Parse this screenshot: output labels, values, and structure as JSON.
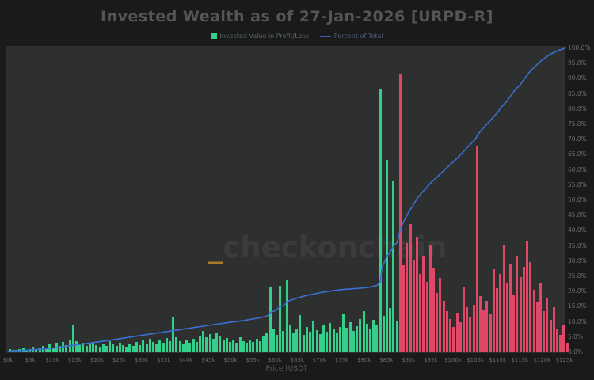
{
  "title": "Invested Wealth as of 27-Jan-2026 [URPD-R]",
  "legend": {
    "profit_label": "Invested Value in Profit/Loss",
    "percent_label": "Percent of Total"
  },
  "watermark": {
    "underscore": "_",
    "text": "checkonchain"
  },
  "axes": {
    "x_title": "Price [USD]",
    "x_ticks": [
      {
        "v": 0,
        "label": "$0k"
      },
      {
        "v": 5,
        "label": "$5k"
      },
      {
        "v": 10,
        "label": "$10k"
      },
      {
        "v": 15,
        "label": "$15k"
      },
      {
        "v": 20,
        "label": "$20k"
      },
      {
        "v": 25,
        "label": "$25k"
      },
      {
        "v": 30,
        "label": "$30k"
      },
      {
        "v": 35,
        "label": "$35k"
      },
      {
        "v": 40,
        "label": "$40k"
      },
      {
        "v": 45,
        "label": "$45k"
      },
      {
        "v": 50,
        "label": "$50k"
      },
      {
        "v": 55,
        "label": "$55k"
      },
      {
        "v": 60,
        "label": "$60k"
      },
      {
        "v": 65,
        "label": "$65k"
      },
      {
        "v": 70,
        "label": "$70k"
      },
      {
        "v": 75,
        "label": "$75k"
      },
      {
        "v": 80,
        "label": "$80k"
      },
      {
        "v": 85,
        "label": "$85k"
      },
      {
        "v": 90,
        "label": "$90k"
      },
      {
        "v": 95,
        "label": "$95k"
      },
      {
        "v": 100,
        "label": "$100k"
      },
      {
        "v": 105,
        "label": "$105k"
      },
      {
        "v": 110,
        "label": "$110k"
      },
      {
        "v": 115,
        "label": "$115k"
      },
      {
        "v": 120,
        "label": "$120k"
      },
      {
        "v": 125,
        "label": "$125k"
      }
    ],
    "y_right_ticks": [
      {
        "v": 100,
        "label": "100.0%"
      },
      {
        "v": 95,
        "label": "95.0%"
      },
      {
        "v": 90,
        "label": "90.0%"
      },
      {
        "v": 85,
        "label": "85.0%"
      },
      {
        "v": 80,
        "label": "80.0%"
      },
      {
        "v": 75,
        "label": "75.0%"
      },
      {
        "v": 70,
        "label": "70.0%"
      },
      {
        "v": 65,
        "label": "65.0%"
      },
      {
        "v": 60,
        "label": "60.0%"
      },
      {
        "v": 55,
        "label": "55.0%"
      },
      {
        "v": 50,
        "label": "50.0%"
      },
      {
        "v": 45,
        "label": "45.0%"
      },
      {
        "v": 40,
        "label": "40.0%"
      },
      {
        "v": 35,
        "label": "35.0%"
      },
      {
        "v": 30,
        "label": "30.0%"
      },
      {
        "v": 25,
        "label": "25.0%"
      },
      {
        "v": 20,
        "label": "20.0%"
      },
      {
        "v": 15,
        "label": "15.0%"
      },
      {
        "v": 10,
        "label": "10.0%"
      },
      {
        "v": 5,
        "label": "5.0%"
      },
      {
        "v": 0,
        "label": "0.0%"
      }
    ]
  },
  "colors": {
    "profit_green": "#35cf8c",
    "loss_red": "#e04868",
    "percent_blue": "#3c6fd4",
    "plot_bg": "#2e2f2f",
    "outer_bg": "#1a1a1a",
    "watermark_orange": "#a87c2c"
  },
  "chart_data": {
    "type": "bar+line",
    "title": "Invested Wealth as of 27-Jan-2026 [URPD-R]",
    "xlabel": "Price [USD]",
    "xlim_k": [
      0,
      126.5
    ],
    "ylim_pct": [
      0,
      100
    ],
    "grid": false,
    "legend_position": "top-center",
    "boundary_price_k": 87.6,
    "bars": {
      "name": "Invested Value in Profit/Loss",
      "start_k": 0.4,
      "step_k": 0.75,
      "heights_pct": [
        0.8,
        0.4,
        0.5,
        0.7,
        1.2,
        0.6,
        0.9,
        1.5,
        0.8,
        1.1,
        1.8,
        1.0,
        2.3,
        1.4,
        2.8,
        1.7,
        3.2,
        2.1,
        3.8,
        8.8,
        3.4,
        2.2,
        2.9,
        1.8,
        2.4,
        3.1,
        2.0,
        1.6,
        2.6,
        1.9,
        3.3,
        2.3,
        1.7,
        2.8,
        2.1,
        1.5,
        2.5,
        1.8,
        3.0,
        2.2,
        3.6,
        2.6,
        4.2,
        3.1,
        2.4,
        3.7,
        2.8,
        4.5,
        3.3,
        11.4,
        4.8,
        3.5,
        2.7,
        3.9,
        2.9,
        4.3,
        3.2,
        5.2,
        6.7,
        4.6,
        5.8,
        4.1,
        6.2,
        4.9,
        3.6,
        4.4,
        3.0,
        3.8,
        2.9,
        4.7,
        3.4,
        2.8,
        3.9,
        3.1,
        4.2,
        3.5,
        5.1,
        6.3,
        21.0,
        7.2,
        5.4,
        21.5,
        6.8,
        23.5,
        8.9,
        6.1,
        7.4,
        12.0,
        5.6,
        8.2,
        6.4,
        10.2,
        7.1,
        5.8,
        8.6,
        6.6,
        9.4,
        7.6,
        5.9,
        8.1,
        12.2,
        7.8,
        9.6,
        6.9,
        8.4,
        10.8,
        13.2,
        9.1,
        7.3,
        10.4,
        8.8,
        86.5,
        11.6,
        63.0,
        14.2,
        56.0,
        9.8,
        91.5,
        28.4,
        35.6,
        42.0,
        30.2,
        37.8,
        25.4,
        31.6,
        22.8,
        35.2,
        27.6,
        19.4,
        24.2,
        16.8,
        13.4,
        10.6,
        8.2,
        12.8,
        9.6,
        21.2,
        14.6,
        11.2,
        15.4,
        67.5,
        18.2,
        13.8,
        16.6,
        12.4,
        27.2,
        20.8,
        25.6,
        35.2,
        22.4,
        28.8,
        18.6,
        31.4,
        24.6,
        27.8,
        36.2,
        29.4,
        20.2,
        16.4,
        22.6,
        13.2,
        17.8,
        10.4,
        14.6,
        7.2,
        5.4,
        8.6,
        2.8
      ]
    },
    "line": {
      "name": "Percent of Total",
      "points": [
        [
          0,
          0
        ],
        [
          5,
          0.5
        ],
        [
          10,
          1.1
        ],
        [
          15,
          2.1
        ],
        [
          20,
          3.1
        ],
        [
          25,
          4.2
        ],
        [
          30,
          5.3
        ],
        [
          35,
          6.4
        ],
        [
          40,
          7.5
        ],
        [
          45,
          8.6
        ],
        [
          50,
          9.6
        ],
        [
          53,
          10.2
        ],
        [
          55,
          10.7
        ],
        [
          57,
          11.2
        ],
        [
          58.5,
          11.8
        ],
        [
          59,
          12.9
        ],
        [
          60,
          13.4
        ],
        [
          61,
          14.6
        ],
        [
          62,
          15.2
        ],
        [
          63,
          16.6
        ],
        [
          64,
          17.1
        ],
        [
          65,
          17.6
        ],
        [
          67,
          18.4
        ],
        [
          69,
          19.0
        ],
        [
          71,
          19.6
        ],
        [
          73,
          20.0
        ],
        [
          75,
          20.4
        ],
        [
          77,
          20.6
        ],
        [
          79,
          20.8
        ],
        [
          81,
          21.1
        ],
        [
          83,
          21.8
        ],
        [
          83.7,
          23.0
        ],
        [
          84,
          27.5
        ],
        [
          84.4,
          28.8
        ],
        [
          85.2,
          31.5
        ],
        [
          85.6,
          32.2
        ],
        [
          86.7,
          34.8
        ],
        [
          87.4,
          35.8
        ],
        [
          88.2,
          40.5
        ],
        [
          89,
          43
        ],
        [
          90,
          45.8
        ],
        [
          91,
          48
        ],
        [
          92,
          50.5
        ],
        [
          93,
          52.3
        ],
        [
          94,
          53.8
        ],
        [
          95,
          55.5
        ],
        [
          96,
          56.8
        ],
        [
          97,
          58.2
        ],
        [
          98,
          59.6
        ],
        [
          99,
          61
        ],
        [
          100,
          62.3
        ],
        [
          101,
          63.7
        ],
        [
          102,
          65.2
        ],
        [
          103,
          66.8
        ],
        [
          104,
          68.3
        ],
        [
          105,
          69.8
        ],
        [
          105.5,
          71.2
        ],
        [
          106,
          72.2
        ],
        [
          107,
          73.8
        ],
        [
          108,
          75.4
        ],
        [
          109,
          77
        ],
        [
          110,
          78.6
        ],
        [
          111,
          80.6
        ],
        [
          112,
          82.2
        ],
        [
          113,
          84.2
        ],
        [
          114,
          86.2
        ],
        [
          115,
          87.6
        ],
        [
          116,
          89.6
        ],
        [
          117,
          91.6
        ],
        [
          118,
          93.2
        ],
        [
          119,
          94.6
        ],
        [
          120,
          95.9
        ],
        [
          121,
          96.9
        ],
        [
          122,
          97.9
        ],
        [
          123,
          98.6
        ],
        [
          124,
          99.2
        ],
        [
          125,
          99.7
        ],
        [
          126.4,
          100
        ]
      ]
    }
  }
}
